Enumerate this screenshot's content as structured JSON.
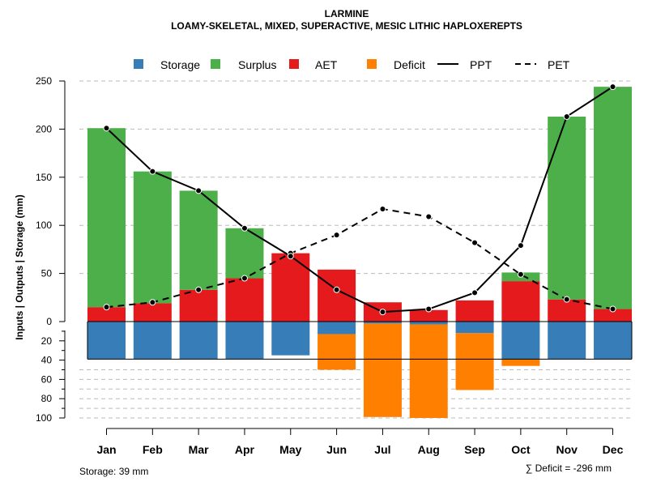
{
  "chart_data": {
    "type": "bar",
    "title": "LARMINE",
    "subtitle": "LOAMY-SKELETAL, MIXED, SUPERACTIVE, MESIC LITHIC HAPLOXEREPTS",
    "ylabel": "Inputs | Outputs | Storage    (mm)",
    "ylim_top": [
      0,
      250
    ],
    "ylim_bottom": [
      0,
      100
    ],
    "yticks_top": [
      "0",
      "50",
      "100",
      "150",
      "200",
      "250"
    ],
    "yticks_bottom": [
      "20",
      "40",
      "60",
      "80",
      "100"
    ],
    "categories": [
      "Jan",
      "Feb",
      "Mar",
      "Apr",
      "May",
      "Jun",
      "Jul",
      "Aug",
      "Sep",
      "Oct",
      "Nov",
      "Dec"
    ],
    "legend": {
      "storage": "Storage",
      "surplus": "Surplus",
      "aet": "AET",
      "deficit": "Deficit",
      "ppt": "PPT",
      "pet": "PET"
    },
    "colors": {
      "storage": "#377EB8",
      "surplus": "#4DAF4A",
      "aet": "#E41A1C",
      "deficit": "#FF7F00",
      "line": "#000000",
      "grid": "#bbbbbb"
    },
    "series": [
      {
        "name": "AET",
        "values": [
          15,
          19,
          33,
          45,
          71,
          54,
          20,
          12,
          22,
          42,
          23,
          13
        ]
      },
      {
        "name": "Surplus",
        "values": [
          186,
          137,
          103,
          52,
          0,
          0,
          0,
          0,
          0,
          9,
          190,
          231
        ]
      },
      {
        "name": "Storage",
        "values": [
          39,
          39,
          39,
          39,
          35,
          13,
          2,
          3,
          12,
          39,
          39,
          39
        ]
      },
      {
        "name": "Deficit",
        "values": [
          0,
          0,
          0,
          0,
          0,
          37,
          97,
          97,
          59,
          7,
          0,
          0
        ]
      },
      {
        "name": "PPT",
        "values": [
          201,
          156,
          136,
          97,
          68,
          33,
          10,
          13,
          30,
          79,
          213,
          244
        ]
      },
      {
        "name": "PET",
        "values": [
          15,
          20,
          33,
          45,
          71,
          90,
          117,
          109,
          82,
          49,
          23,
          13
        ]
      }
    ],
    "footer_left": "Storage: 39 mm",
    "footer_right": "∑ Deficit = -296 mm"
  }
}
